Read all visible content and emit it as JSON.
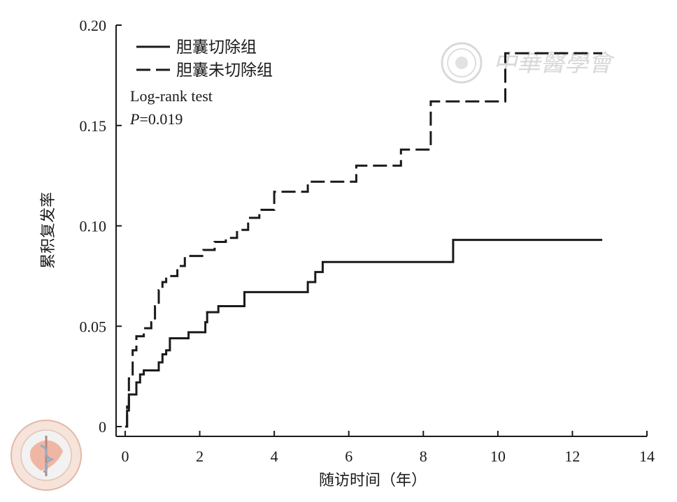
{
  "chart_data": {
    "type": "line",
    "step": true,
    "xlabel": "随访时间（年）",
    "ylabel": "累积复发率",
    "xlim": [
      0,
      14
    ],
    "ylim": [
      0,
      0.2
    ],
    "xticks": [
      "0",
      "2",
      "4",
      "6",
      "8",
      "10",
      "12",
      "14"
    ],
    "yticks": [
      "0",
      "0.05",
      "0.10",
      "0.15",
      "0.20"
    ],
    "grid": false,
    "legend_position": "top-left",
    "annotation": {
      "test": "Log‑rank test",
      "p_label": "P",
      "p_value": "=0.019"
    },
    "series": [
      {
        "name": "胆囊切除组",
        "style": "solid",
        "color": "#1a1a1a",
        "points": [
          [
            0.0,
            0.0
          ],
          [
            0.05,
            0.008
          ],
          [
            0.1,
            0.016
          ],
          [
            0.3,
            0.022
          ],
          [
            0.4,
            0.026
          ],
          [
            0.5,
            0.028
          ],
          [
            0.9,
            0.032
          ],
          [
            1.0,
            0.036
          ],
          [
            1.1,
            0.038
          ],
          [
            1.2,
            0.044
          ],
          [
            1.7,
            0.047
          ],
          [
            2.15,
            0.052
          ],
          [
            2.2,
            0.057
          ],
          [
            2.5,
            0.06
          ],
          [
            3.2,
            0.064
          ],
          [
            3.2,
            0.067
          ],
          [
            4.9,
            0.072
          ],
          [
            5.1,
            0.077
          ],
          [
            5.3,
            0.082
          ],
          [
            8.8,
            0.093
          ],
          [
            12.8,
            0.093
          ]
        ]
      },
      {
        "name": "胆囊未切除组",
        "style": "dashed",
        "color": "#1a1a1a",
        "points": [
          [
            0.0,
            0.0
          ],
          [
            0.05,
            0.01
          ],
          [
            0.1,
            0.024
          ],
          [
            0.2,
            0.038
          ],
          [
            0.3,
            0.045
          ],
          [
            0.5,
            0.049
          ],
          [
            0.7,
            0.052
          ],
          [
            0.8,
            0.06
          ],
          [
            0.9,
            0.068
          ],
          [
            1.0,
            0.072
          ],
          [
            1.1,
            0.075
          ],
          [
            1.4,
            0.08
          ],
          [
            1.6,
            0.085
          ],
          [
            2.1,
            0.088
          ],
          [
            2.4,
            0.092
          ],
          [
            2.7,
            0.094
          ],
          [
            3.0,
            0.098
          ],
          [
            3.3,
            0.104
          ],
          [
            3.6,
            0.108
          ],
          [
            4.0,
            0.117
          ],
          [
            4.9,
            0.122
          ],
          [
            6.2,
            0.13
          ],
          [
            7.4,
            0.138
          ],
          [
            8.2,
            0.162
          ],
          [
            10.2,
            0.186
          ],
          [
            12.8,
            0.186
          ]
        ]
      }
    ]
  },
  "watermark": {
    "text": "中華醫學會",
    "logo_seal_text": "中华医学会 CHINESE MEDICAL ASSOCIATION 1915"
  }
}
